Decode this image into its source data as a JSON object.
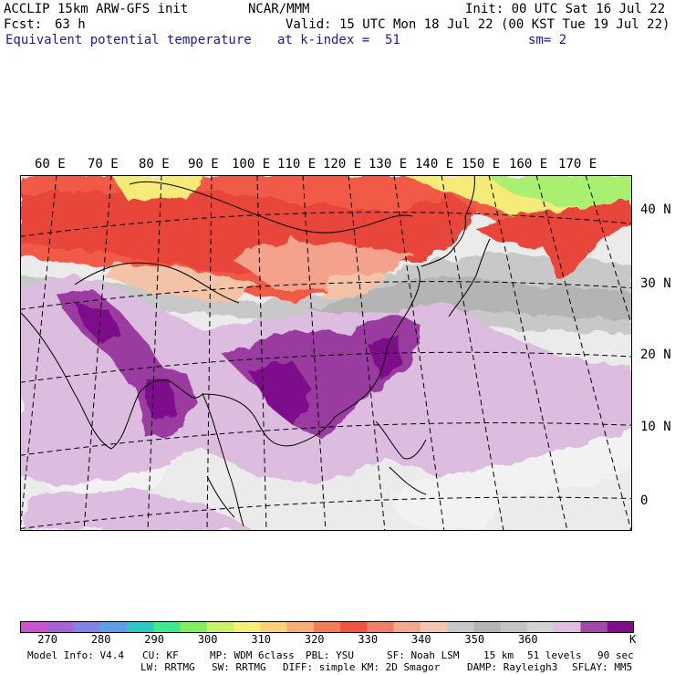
{
  "header": {
    "model": "ACCLIP 15km ARW-GFS init",
    "org": "NCAR/MMM",
    "init": "Init: 00 UTC Sat 16 Jul 22",
    "fcst_label": "Fcst:",
    "fcst_value": "63 h",
    "valid": "Valid: 15 UTC Mon 18 Jul 22 (00 KST Tue 19 Jul 22)",
    "field": "Equivalent potential temperature",
    "level": "at k-index =  51",
    "smooth": "sm= 2"
  },
  "map": {
    "lon_labels": [
      "60 E",
      "70 E",
      "80 E",
      "90 E",
      "100 E",
      "110 E",
      "120 E",
      "130 E",
      "140 E",
      "150 E",
      "160 E",
      "170 E"
    ],
    "lat_labels": [
      "40 N",
      "30 N",
      "20 N",
      "10 N",
      "0"
    ],
    "colors": {
      "background": "#ebebeb",
      "ocean_light": "#f2f2f2",
      "grey_350": "#c8c8c8",
      "grey_355": "#b4b4b4",
      "orange_red": "#f15a46",
      "red": "#e8443a",
      "salmon": "#f5a28c",
      "peach": "#f2c3a6",
      "yellow": "#f6ea78",
      "green": "#a9ef70",
      "lavender": "#dcbde0",
      "purple": "#9a3aa0",
      "dark_purple": "#7d0f8a",
      "coast": "#000000"
    }
  },
  "colorbar": {
    "colors": [
      "#cc55cc",
      "#a763d6",
      "#8183e6",
      "#5f9ee6",
      "#2dc8c4",
      "#3de88f",
      "#7ef060",
      "#c8f068",
      "#f5ef78",
      "#f8d278",
      "#f5b07a",
      "#f37c5a",
      "#ef5443",
      "#f07e6a",
      "#f4a88e",
      "#f2c7b0",
      "#c8c8c8",
      "#b4b4b4",
      "#c3c3c3",
      "#d2d2d2",
      "#e0bde3",
      "#a24aa8",
      "#820c8c"
    ],
    "labels": [
      "270",
      "280",
      "290",
      "300",
      "310",
      "320",
      "330",
      "340",
      "350",
      "360"
    ],
    "unit": "K"
  },
  "footer": {
    "line1": [
      "Model Info: V4.4",
      "CU: KF",
      "MP: WDM 6class",
      "PBL: YSU",
      "SF: Noah LSM",
      "15 km",
      "51 levels",
      "90 sec"
    ],
    "line2": [
      "LW: RRTMG",
      "SW: RRTMG",
      "DIFF: simple KM: 2D Smagor",
      "DAMP: Rayleigh3",
      "SFLAY: MM5"
    ]
  }
}
